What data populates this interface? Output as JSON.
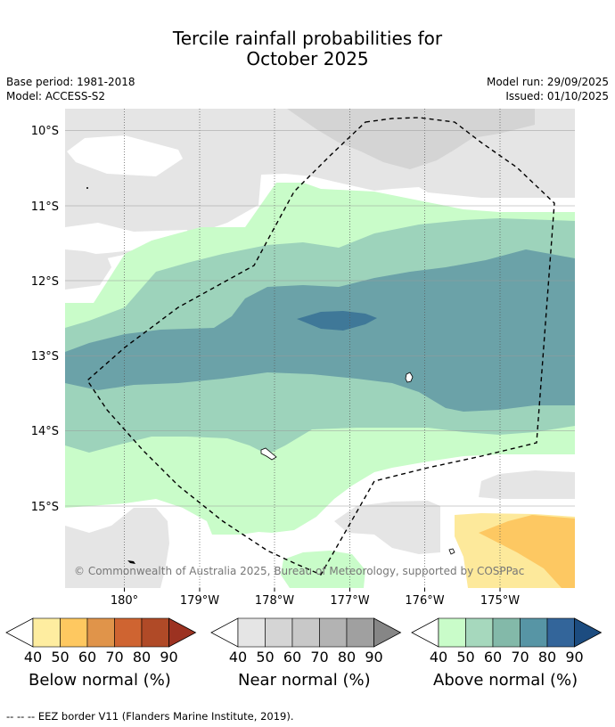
{
  "title": {
    "line1": "Tercile rainfall probabilities for",
    "line2": "October 2025"
  },
  "header": {
    "base_period": "Base period: 1981-2018",
    "model": "Model: ACCESS-S2",
    "model_run": "Model run: 29/09/2025",
    "issued": "Issued: 01/10/2025"
  },
  "map": {
    "lat_labels": [
      "10°S",
      "11°S",
      "12°S",
      "13°S",
      "14°S",
      "15°S"
    ],
    "lon_labels": [
      "180°",
      "179°W",
      "178°W",
      "177°W",
      "176°W",
      "175°W"
    ],
    "copyright": "© Commonwealth of Australia 2025, Bureau of Meteorology, supported by COSPPac",
    "colors": {
      "near_normal_40": "#e5e5e5",
      "near_normal_50": "#d4d4d4",
      "above_40": "#c9fcc9",
      "above_50": "#9dd3bb",
      "above_60": "#6ba2a8",
      "above_70": "#3f7898",
      "below_40": "#fde99b",
      "below_50": "#fdc862"
    }
  },
  "colorbars": [
    {
      "name": "below",
      "label": "Below normal (%)",
      "colors": [
        "#ffffff",
        "#feeda0",
        "#fec860",
        "#e0944a",
        "#cf6431",
        "#b04a27",
        "#9c3221"
      ],
      "ticks": [
        "40",
        "50",
        "60",
        "70",
        "80",
        "90"
      ]
    },
    {
      "name": "near",
      "label": "Near normal (%)",
      "colors": [
        "#ffffff",
        "#e5e5e5",
        "#d5d5d5",
        "#c8c8c8",
        "#b3b3b3",
        "#a0a0a0",
        "#868686"
      ],
      "ticks": [
        "40",
        "50",
        "60",
        "70",
        "80",
        "90"
      ]
    },
    {
      "name": "above",
      "label": "Above normal (%)",
      "colors": [
        "#ffffff",
        "#c9fcc9",
        "#a6d8bd",
        "#83b9a9",
        "#5795a5",
        "#33659a",
        "#1c4c80"
      ],
      "ticks": [
        "40",
        "50",
        "60",
        "70",
        "80",
        "90"
      ]
    }
  ],
  "footer": "-- -- -- EEZ border V11 (Flanders Marine Institute, 2019)."
}
